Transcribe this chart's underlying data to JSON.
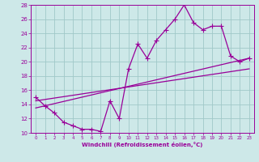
{
  "xlabel": "Windchill (Refroidissement éolien,°C)",
  "bg_color": "#cde8e8",
  "line_color": "#990099",
  "grid_color": "#a0c8c8",
  "xlim": [
    -0.5,
    23.5
  ],
  "ylim": [
    10,
    28
  ],
  "xticks": [
    0,
    1,
    2,
    3,
    4,
    5,
    6,
    7,
    8,
    9,
    10,
    11,
    12,
    13,
    14,
    15,
    16,
    17,
    18,
    19,
    20,
    21,
    22,
    23
  ],
  "yticks": [
    10,
    12,
    14,
    16,
    18,
    20,
    22,
    24,
    26,
    28
  ],
  "line1_x": [
    0,
    1,
    2,
    3,
    4,
    5,
    6,
    7,
    8,
    9,
    10,
    11,
    12,
    13,
    14,
    15,
    16,
    17,
    18,
    19,
    20,
    21,
    22,
    23
  ],
  "line1_y": [
    15.0,
    13.8,
    12.8,
    11.5,
    11.0,
    10.5,
    10.5,
    10.2,
    14.5,
    12.0,
    19.0,
    22.5,
    20.5,
    23.0,
    24.5,
    26.0,
    28.0,
    25.5,
    24.5,
    25.0,
    25.0,
    20.8,
    20.0,
    20.5
  ],
  "line2_x": [
    0,
    23
  ],
  "line2_y": [
    13.5,
    20.5
  ],
  "line3_x": [
    0,
    23
  ],
  "line3_y": [
    14.5,
    19.0
  ],
  "marker": "P",
  "markersize": 2.5,
  "linewidth": 0.9
}
